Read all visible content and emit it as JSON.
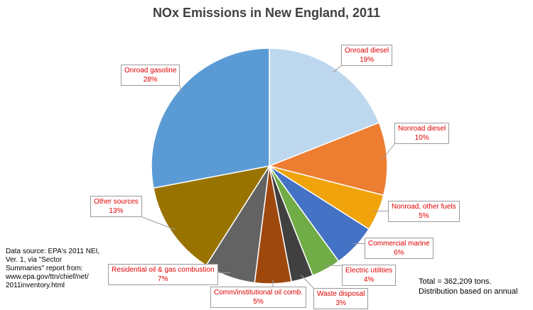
{
  "chart_data": {
    "type": "pie",
    "title": "NOx Emissions in New England, 2011",
    "slices": [
      {
        "label": "Onroad diesel",
        "value": 19,
        "value_label": "19%",
        "color": "#bdd7ee"
      },
      {
        "label": "Nonroad diesel",
        "value": 10,
        "value_label": "10%",
        "color": "#ed7d31"
      },
      {
        "label": "Nonroad, other fuels",
        "value": 5,
        "value_label": "5%",
        "color": "#f0a30a"
      },
      {
        "label": "Commercial marine",
        "value": 6,
        "value_label": "6%",
        "color": "#4472c4"
      },
      {
        "label": "Electric utilities",
        "value": 4,
        "value_label": "4%",
        "color": "#70ad47"
      },
      {
        "label": "Waste disposal",
        "value": 3,
        "value_label": "3%",
        "color": "#404040"
      },
      {
        "label": "Comm/institutional oil comb.",
        "value": 5,
        "value_label": "5%",
        "color": "#9e480e"
      },
      {
        "label": "Residential oil & gas combustion",
        "value": 7,
        "value_label": "7%",
        "color": "#636363"
      },
      {
        "label": "Other sources",
        "value": 13,
        "value_label": "13%",
        "color": "#997300"
      },
      {
        "label": "Onroad gasoline",
        "value": 28,
        "value_label": "28%",
        "color": "#5b9bd5"
      }
    ]
  },
  "notes": {
    "source": "Data source: EPA's 2011 NEI,\nVer. 1, via \"Sector\nSummaries\" report from:\nwww.epa.gov/ttn/chief/net/\n2011inventory.html",
    "total_line1": "Total = 362,209 tons.",
    "total_line2": "Distribution based on annual"
  }
}
